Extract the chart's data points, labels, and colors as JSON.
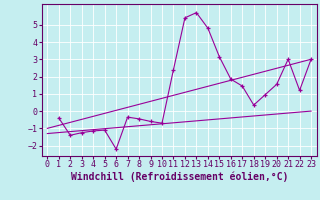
{
  "xlabel": "Windchill (Refroidissement éolien,°C)",
  "bg_color": "#c5eef0",
  "line_color": "#990099",
  "grid_color": "#ffffff",
  "xlim": [
    -0.5,
    23.5
  ],
  "ylim": [
    -2.6,
    6.2
  ],
  "xticks": [
    0,
    1,
    2,
    3,
    4,
    5,
    6,
    7,
    8,
    9,
    10,
    11,
    12,
    13,
    14,
    15,
    16,
    17,
    18,
    19,
    20,
    21,
    22,
    23
  ],
  "yticks": [
    -2,
    -1,
    0,
    1,
    2,
    3,
    4,
    5
  ],
  "line1_x": [
    1,
    2,
    3,
    4,
    5,
    6,
    7,
    8,
    9,
    10,
    11,
    12,
    13,
    14,
    15,
    16,
    17,
    18,
    19,
    20,
    21,
    22,
    23
  ],
  "line1_y": [
    -0.4,
    -1.4,
    -1.25,
    -1.15,
    -1.1,
    -2.2,
    -0.35,
    -0.45,
    -0.6,
    -0.7,
    2.4,
    5.4,
    5.7,
    4.8,
    3.15,
    1.85,
    1.45,
    0.35,
    0.95,
    1.55,
    3.0,
    1.2,
    3.0
  ],
  "line2_x": [
    0,
    23
  ],
  "line2_y": [
    -1.0,
    3.0
  ],
  "line3_x": [
    0,
    23
  ],
  "line3_y": [
    -1.3,
    0.0
  ],
  "xlabel_fontsize": 7,
  "tick_fontsize": 6
}
